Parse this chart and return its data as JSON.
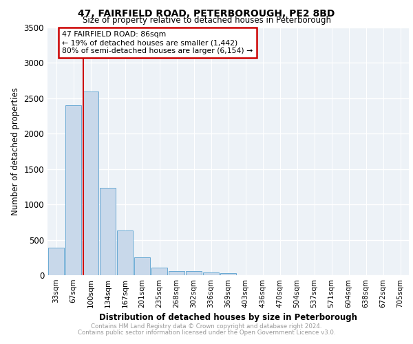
{
  "title": "47, FAIRFIELD ROAD, PETERBOROUGH, PE2 8BD",
  "subtitle": "Size of property relative to detached houses in Peterborough",
  "xlabel": "Distribution of detached houses by size in Peterborough",
  "ylabel": "Number of detached properties",
  "categories": [
    "33sqm",
    "67sqm",
    "100sqm",
    "134sqm",
    "167sqm",
    "201sqm",
    "235sqm",
    "268sqm",
    "302sqm",
    "336sqm",
    "369sqm",
    "403sqm",
    "436sqm",
    "470sqm",
    "504sqm",
    "537sqm",
    "571sqm",
    "604sqm",
    "638sqm",
    "672sqm",
    "705sqm"
  ],
  "values": [
    390,
    2400,
    2600,
    1230,
    630,
    255,
    110,
    60,
    55,
    40,
    25,
    0,
    0,
    0,
    0,
    0,
    0,
    0,
    0,
    0,
    0
  ],
  "bar_color": "#c8d8ea",
  "bar_edgecolor": "#6aaad4",
  "ylim": [
    0,
    3500
  ],
  "yticks": [
    0,
    500,
    1000,
    1500,
    2000,
    2500,
    3000,
    3500
  ],
  "property_line_x": 1.58,
  "property_line_color": "#cc0000",
  "annotation_text": "47 FAIRFIELD ROAD: 86sqm\n← 19% of detached houses are smaller (1,442)\n80% of semi-detached houses are larger (6,154) →",
  "annotation_box_color": "#cc0000",
  "footnote_line1": "Contains HM Land Registry data © Crown copyright and database right 2024.",
  "footnote_line2": "Contains public sector information licensed under the Open Government Licence v3.0.",
  "background_color": "#edf2f7",
  "grid_color": "#ffffff",
  "axis_bg": "#edf2f7"
}
